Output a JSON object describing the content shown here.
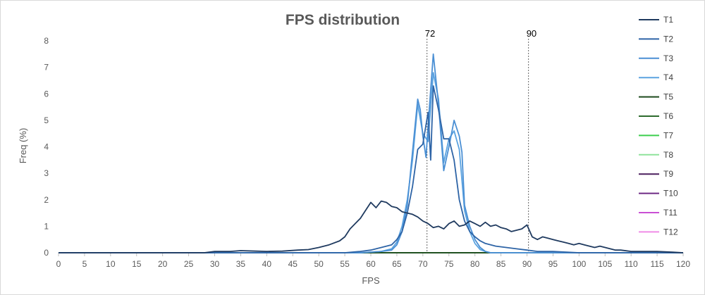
{
  "chart_data": {
    "type": "line",
    "title": "FPS distribution",
    "xlabel": "FPS",
    "ylabel": "Freq (%)",
    "xlim": [
      0,
      120
    ],
    "ylim": [
      0,
      8
    ],
    "x_ticks": [
      "0",
      "5",
      "10",
      "15",
      "20",
      "25",
      "30",
      "35",
      "40",
      "45",
      "50",
      "55",
      "60",
      "65",
      "70",
      "75",
      "80",
      "85",
      "90",
      "95",
      "100",
      "105",
      "110",
      "115",
      "120"
    ],
    "y_ticks": [
      "0",
      "1",
      "2",
      "3",
      "4",
      "5",
      "6",
      "7",
      "8"
    ],
    "grid": false,
    "legend_position": "right",
    "annotations": [
      {
        "label": "72",
        "x": 70.8
      },
      {
        "label": "90",
        "x": 90.3
      }
    ],
    "series": [
      {
        "name": "T1",
        "color": "#1f3a5f",
        "points": [
          [
            0,
            0
          ],
          [
            28,
            0
          ],
          [
            30,
            0.05
          ],
          [
            33,
            0.05
          ],
          [
            35,
            0.08
          ],
          [
            38,
            0.06
          ],
          [
            40,
            0.05
          ],
          [
            43,
            0.06
          ],
          [
            46,
            0.1
          ],
          [
            48,
            0.12
          ],
          [
            50,
            0.2
          ],
          [
            52,
            0.3
          ],
          [
            54,
            0.45
          ],
          [
            55,
            0.6
          ],
          [
            56,
            0.9
          ],
          [
            57,
            1.1
          ],
          [
            58,
            1.3
          ],
          [
            59,
            1.6
          ],
          [
            60,
            1.9
          ],
          [
            61,
            1.7
          ],
          [
            62,
            1.95
          ],
          [
            63,
            1.9
          ],
          [
            64,
            1.75
          ],
          [
            65,
            1.7
          ],
          [
            66,
            1.55
          ],
          [
            67,
            1.5
          ],
          [
            68,
            1.45
          ],
          [
            69,
            1.35
          ],
          [
            70,
            1.2
          ],
          [
            71,
            1.1
          ],
          [
            72,
            0.95
          ],
          [
            73,
            1.0
          ],
          [
            74,
            0.9
          ],
          [
            75,
            1.1
          ],
          [
            76,
            1.2
          ],
          [
            77,
            1.0
          ],
          [
            78,
            1.05
          ],
          [
            79,
            1.2
          ],
          [
            80,
            1.1
          ],
          [
            81,
            1.0
          ],
          [
            82,
            1.15
          ],
          [
            83,
            1.0
          ],
          [
            84,
            1.05
          ],
          [
            85,
            0.95
          ],
          [
            86,
            0.9
          ],
          [
            87,
            0.8
          ],
          [
            88,
            0.85
          ],
          [
            89,
            0.9
          ],
          [
            90,
            1.05
          ],
          [
            91,
            0.6
          ],
          [
            92,
            0.5
          ],
          [
            93,
            0.6
          ],
          [
            94,
            0.55
          ],
          [
            95,
            0.5
          ],
          [
            96,
            0.45
          ],
          [
            97,
            0.4
          ],
          [
            98,
            0.35
          ],
          [
            99,
            0.3
          ],
          [
            100,
            0.35
          ],
          [
            101,
            0.3
          ],
          [
            102,
            0.25
          ],
          [
            103,
            0.2
          ],
          [
            104,
            0.25
          ],
          [
            105,
            0.2
          ],
          [
            106,
            0.15
          ],
          [
            107,
            0.1
          ],
          [
            108,
            0.1
          ],
          [
            110,
            0.05
          ],
          [
            112,
            0.05
          ],
          [
            115,
            0.05
          ],
          [
            118,
            0.02
          ],
          [
            120,
            0
          ]
        ]
      },
      {
        "name": "T2",
        "color": "#2e64a6",
        "points": [
          [
            0,
            0
          ],
          [
            55,
            0
          ],
          [
            58,
            0.05
          ],
          [
            60,
            0.1
          ],
          [
            62,
            0.2
          ],
          [
            64,
            0.3
          ],
          [
            65,
            0.5
          ],
          [
            66,
            0.8
          ],
          [
            67,
            1.5
          ],
          [
            68,
            2.5
          ],
          [
            69,
            3.9
          ],
          [
            70,
            4.1
          ],
          [
            71,
            5.3
          ],
          [
            71.5,
            3.5
          ],
          [
            72,
            6.3
          ],
          [
            73,
            5.4
          ],
          [
            74,
            4.3
          ],
          [
            75,
            4.3
          ],
          [
            76,
            3.5
          ],
          [
            77,
            2.0
          ],
          [
            78,
            1.2
          ],
          [
            79,
            0.8
          ],
          [
            80,
            0.6
          ],
          [
            81,
            0.45
          ],
          [
            82,
            0.35
          ],
          [
            84,
            0.25
          ],
          [
            86,
            0.2
          ],
          [
            88,
            0.15
          ],
          [
            90,
            0.1
          ],
          [
            92,
            0.05
          ],
          [
            95,
            0.05
          ],
          [
            100,
            0
          ],
          [
            120,
            0
          ]
        ]
      },
      {
        "name": "T3",
        "color": "#4a8fd4",
        "points": [
          [
            0,
            0
          ],
          [
            58,
            0
          ],
          [
            62,
            0.05
          ],
          [
            64,
            0.1
          ],
          [
            65,
            0.3
          ],
          [
            66,
            0.8
          ],
          [
            67,
            1.8
          ],
          [
            68,
            3.8
          ],
          [
            69,
            5.8
          ],
          [
            69.5,
            5.4
          ],
          [
            70,
            4.4
          ],
          [
            70.6,
            3.6
          ],
          [
            71,
            4.8
          ],
          [
            72,
            7.5
          ],
          [
            73,
            5.6
          ],
          [
            74,
            3.1
          ],
          [
            75,
            4.0
          ],
          [
            76,
            5.0
          ],
          [
            77,
            4.4
          ],
          [
            77.5,
            3.8
          ],
          [
            78,
            1.8
          ],
          [
            79,
            1.0
          ],
          [
            80,
            0.5
          ],
          [
            81,
            0.2
          ],
          [
            82,
            0.05
          ],
          [
            83,
            0
          ],
          [
            120,
            0
          ]
        ]
      },
      {
        "name": "T4",
        "color": "#5ba3e0",
        "points": [
          [
            0,
            0
          ],
          [
            58,
            0
          ],
          [
            62,
            0.05
          ],
          [
            64,
            0.15
          ],
          [
            65,
            0.4
          ],
          [
            66,
            1.0
          ],
          [
            67,
            2.0
          ],
          [
            68,
            3.5
          ],
          [
            69,
            5.6
          ],
          [
            70,
            4.5
          ],
          [
            71,
            4.2
          ],
          [
            72,
            6.8
          ],
          [
            73,
            5.8
          ],
          [
            74,
            3.4
          ],
          [
            75,
            4.3
          ],
          [
            76,
            4.6
          ],
          [
            77,
            3.9
          ],
          [
            78,
            1.6
          ],
          [
            79,
            0.8
          ],
          [
            80,
            0.35
          ],
          [
            81,
            0.12
          ],
          [
            82,
            0.05
          ],
          [
            83,
            0
          ],
          [
            120,
            0
          ]
        ]
      },
      {
        "name": "T5",
        "color": "#1e4a1e",
        "points": [
          [
            0,
            0
          ],
          [
            120,
            0
          ]
        ]
      },
      {
        "name": "T6",
        "color": "#2d6b2d",
        "points": [
          [
            0,
            0
          ],
          [
            120,
            0
          ]
        ]
      },
      {
        "name": "T7",
        "color": "#3ccf4e",
        "points": [
          [
            0,
            0
          ],
          [
            120,
            0
          ]
        ]
      },
      {
        "name": "T8",
        "color": "#8fe39b",
        "points": [
          [
            0,
            0
          ],
          [
            120,
            0
          ]
        ]
      },
      {
        "name": "T9",
        "color": "#4b1f5e",
        "points": [
          [
            0,
            0
          ],
          [
            120,
            0
          ]
        ]
      },
      {
        "name": "T10",
        "color": "#6e2a85",
        "points": [
          [
            0,
            0
          ],
          [
            120,
            0
          ]
        ]
      },
      {
        "name": "T11",
        "color": "#c94fd4",
        "points": [
          [
            0,
            0
          ],
          [
            120,
            0
          ]
        ]
      },
      {
        "name": "T12",
        "color": "#f08ce6",
        "points": [
          [
            0,
            0
          ],
          [
            120,
            0
          ]
        ]
      }
    ]
  }
}
